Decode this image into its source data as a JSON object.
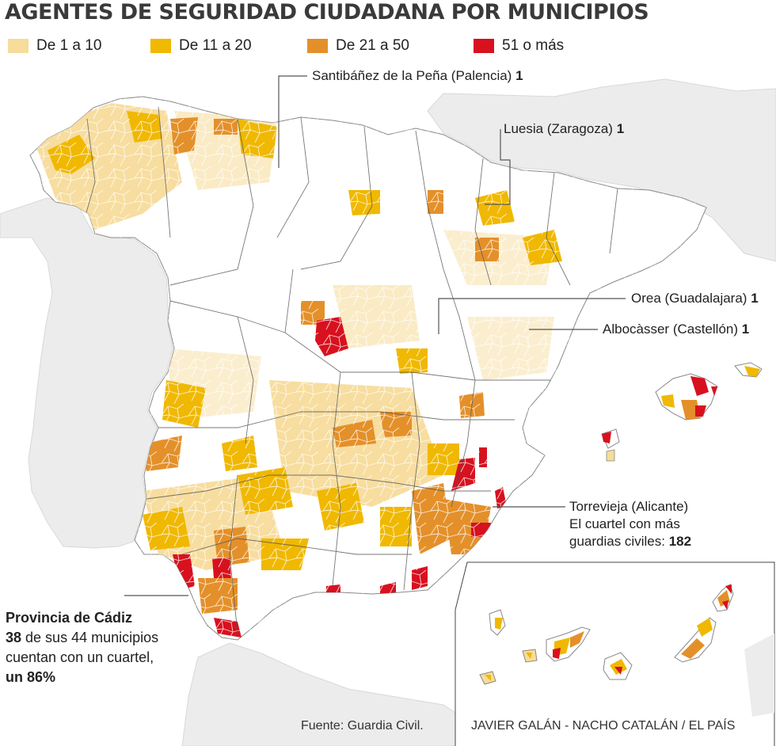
{
  "title": "AGENTES DE SEGURIDAD CIUDADANA POR MUNICIPIOS",
  "legend": [
    {
      "label": "De 1 a 10",
      "color": "#f7dc9a"
    },
    {
      "label": "De 11 a 20",
      "color": "#f0b800"
    },
    {
      "label": "De 21 a 50",
      "color": "#e4902a"
    },
    {
      "label": "51 o más",
      "color": "#d8111f"
    }
  ],
  "callouts": {
    "santibanez": {
      "name": "Santibáñez de la Peña (Palencia)",
      "value": "1"
    },
    "luesia": {
      "name": "Luesia (Zaragoza)",
      "value": "1"
    },
    "orea": {
      "name": "Orea (Guadalajara)",
      "value": "1"
    },
    "albocasser": {
      "name": "Albocàsser (Castellón)",
      "value": "1"
    },
    "torrevieja": {
      "name": "Torrevieja (Alicante)",
      "line2": "El cuartel con más",
      "line3": "guardias civiles:",
      "value": "182"
    },
    "cadiz": {
      "heading": "Provincia de Cádiz",
      "count": "38",
      "text1": " de sus 44 municipios",
      "text2": "cuentan con un cuartel,",
      "pct": "un 86%"
    }
  },
  "footer": {
    "source": "Fuente: Guardia Civil.",
    "credits": "JAVIER GALÁN - NACHO CATALÁN / EL PAÍS"
  },
  "colors": {
    "land_bg": "#ececec",
    "province_border": "#555555",
    "sea": "#ffffff"
  }
}
